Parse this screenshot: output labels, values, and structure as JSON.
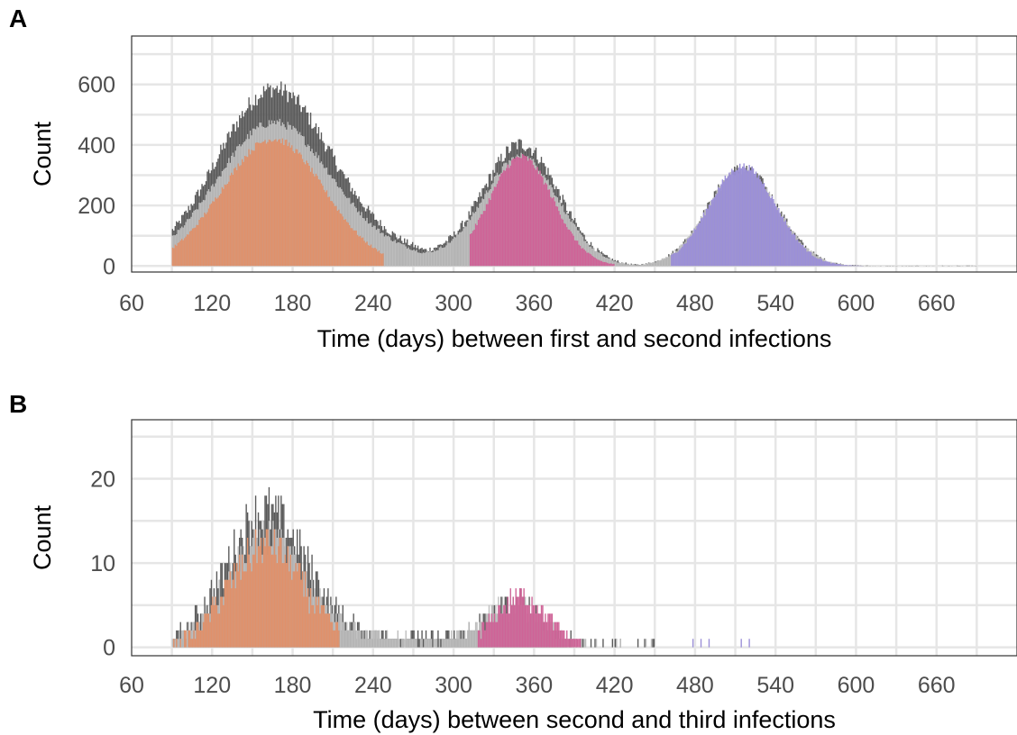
{
  "colors": {
    "total": "#595959",
    "other": "#bdbdbd",
    "first_peak": "#e0916b",
    "second_peak": "#cf6397",
    "third_peak": "#9b8fd8",
    "grid": "#e6e6e6"
  },
  "chart_data": [
    {
      "panel": "A",
      "type": "bar",
      "xlabel": "Time (days) between first and second infections",
      "ylabel": "Count",
      "xlim": [
        60,
        720
      ],
      "ylim": [
        -20,
        760
      ],
      "xticks": [
        60,
        120,
        180,
        240,
        300,
        360,
        420,
        480,
        540,
        600,
        660
      ],
      "yticks": [
        0,
        200,
        400,
        600
      ],
      "grid": true,
      "series": [
        {
          "component": "total",
          "shape": "gaussian-sum",
          "x_start": 90,
          "x_end": 690,
          "bumps": [
            [
              165,
              42,
              580
            ],
            [
              350,
              28,
              400
            ],
            [
              515,
              26,
              320
            ]
          ],
          "noise": 60
        },
        {
          "component": "other",
          "shape": "gaussian-sum",
          "x_start": 90,
          "x_end": 690,
          "bumps": [
            [
              165,
              42,
              470
            ],
            [
              350,
              28,
              360
            ],
            [
              515,
              26,
              320
            ]
          ],
          "noise": 30
        },
        {
          "component": "first_peak",
          "shape": "gaussian",
          "x_start": 90,
          "x_end": 248,
          "center": 165,
          "sd": 38,
          "peak": 420,
          "noise": 25
        },
        {
          "component": "second_peak",
          "shape": "gaussian",
          "x_start": 312,
          "x_end": 420,
          "center": 350,
          "sd": 24,
          "peak": 360,
          "noise": 25
        },
        {
          "component": "third_peak",
          "shape": "gaussian",
          "x_start": 462,
          "x_end": 605,
          "center": 515,
          "sd": 25,
          "peak": 330,
          "noise": 25
        }
      ]
    },
    {
      "panel": "B",
      "type": "bar",
      "xlabel": "Time (days) between second and third infections",
      "ylabel": "Count",
      "xlim": [
        60,
        720
      ],
      "ylim": [
        -1,
        27
      ],
      "xticks": [
        60,
        120,
        180,
        240,
        300,
        360,
        420,
        480,
        540,
        600,
        660
      ],
      "yticks": [
        0,
        10,
        20
      ],
      "grid": true,
      "series": [
        {
          "component": "total",
          "shape": "gaussian-sum",
          "x_start": 90,
          "x_end": 450,
          "bumps": [
            [
              160,
              30,
              16
            ],
            [
              345,
              22,
              5
            ]
          ],
          "noise": 6
        },
        {
          "component": "other",
          "shape": "gaussian-sum",
          "x_start": 90,
          "x_end": 450,
          "bumps": [
            [
              160,
              30,
              13
            ],
            [
              345,
              22,
              5
            ]
          ],
          "noise": 4
        },
        {
          "component": "first_peak",
          "shape": "gaussian",
          "x_start": 90,
          "x_end": 215,
          "center": 160,
          "sd": 28,
          "peak": 12,
          "noise": 5
        },
        {
          "component": "second_peak",
          "shape": "gaussian",
          "x_start": 318,
          "x_end": 395,
          "center": 350,
          "sd": 20,
          "peak": 6,
          "noise": 3
        },
        {
          "component": "third_peak",
          "shape": "points",
          "points": [
            [
              478,
              1
            ],
            [
              484,
              1
            ],
            [
              490,
              1
            ],
            [
              514,
              1
            ],
            [
              520,
              1
            ]
          ]
        }
      ]
    }
  ]
}
